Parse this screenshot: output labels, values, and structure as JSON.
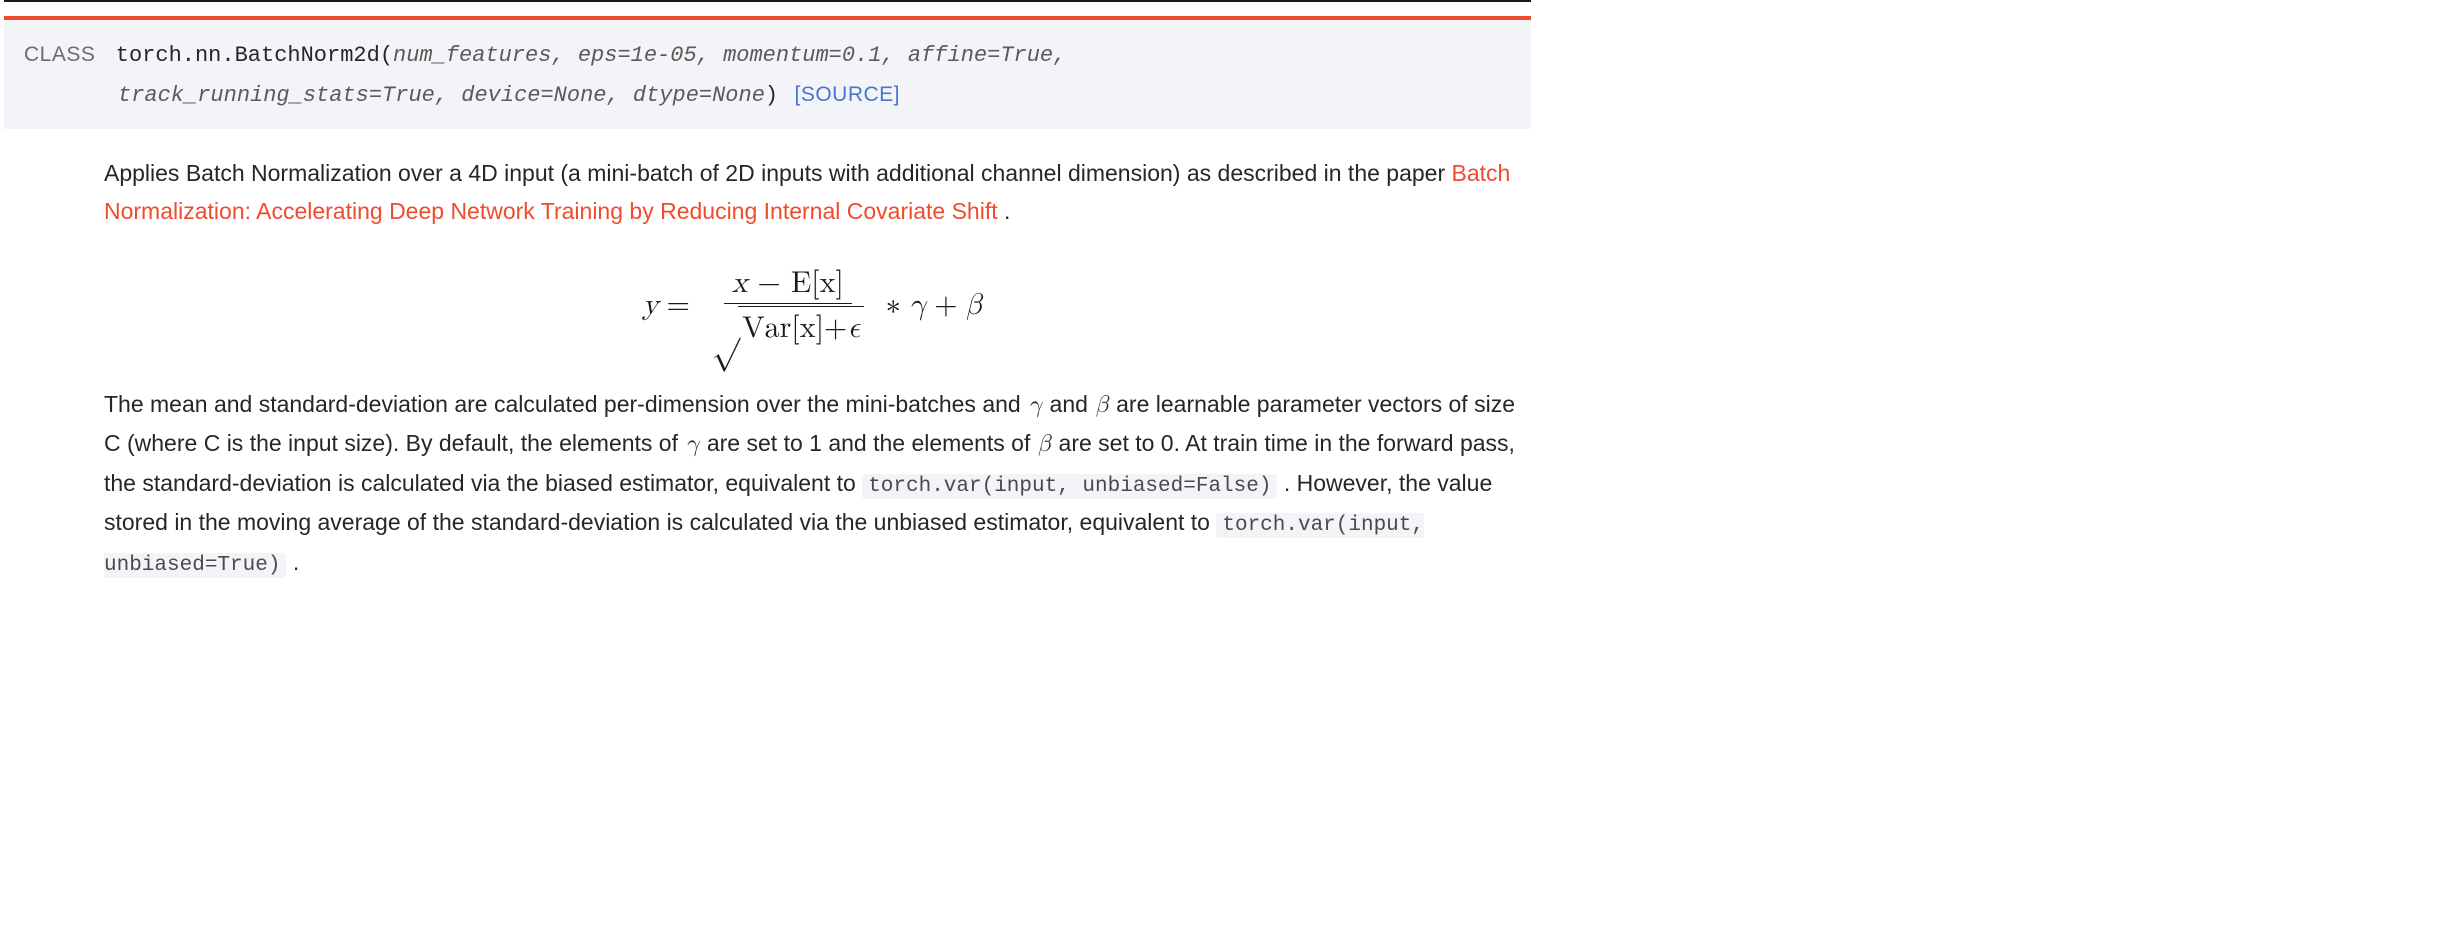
{
  "colors": {
    "accent": "#ee4c2c",
    "link": "#4974d1",
    "sig_bg": "#f3f4f7",
    "code_bg": "#f3f4f7",
    "text": "#262626",
    "param_text": "#5a5a5a",
    "top_rule": "#1a1a1a"
  },
  "signature": {
    "kind": "CLASS",
    "qualified_name": "torch.nn.BatchNorm2d",
    "params_line1": "num_features, eps=1e-05, momentum=0.1, affine=True,",
    "params_line2": "track_running_stats=True, device=None, dtype=None",
    "source_label": "[SOURCE]"
  },
  "intro": {
    "text_before_link": "Applies Batch Normalization over a 4D input (a mini-batch of 2D inputs with additional channel dimension) as described in the paper ",
    "paper_link_text": "Batch Normalization: Accelerating Deep Network Training by Reducing Internal Covariate Shift",
    "text_after_link": " ."
  },
  "formula": {
    "lhs": "y",
    "equals": "=",
    "numerator_x": "x",
    "numerator_minus": " − ",
    "numerator_E": "E",
    "numerator_bracket_x": "[x]",
    "denominator_Var": "Var",
    "denominator_bracket_x": "[x]",
    "denominator_plus": " + ",
    "denominator_eps": "ϵ",
    "times": "∗",
    "gamma": "γ",
    "plus": "+",
    "beta": "β"
  },
  "explanation": {
    "seg1": "The mean and standard-deviation are calculated per-dimension over the mini-batches and ",
    "gamma": "γ",
    "seg2": " and ",
    "beta": "β",
    "seg3": " are learnable parameter vectors of size C (where C is the input size). By default, the elements of ",
    "seg4": " are set to 1 and the elements of ",
    "seg5": " are set to 0. At train time in the forward pass, the standard-deviation is calculated via the biased estimator, equivalent to ",
    "code1": "torch.var(input, unbiased=False)",
    "seg6": " . However, the value stored in the moving average of the standard-deviation is calculated via the unbiased estimator, equivalent to ",
    "code2": "torch.var(input, unbiased=True)",
    "seg7": " ."
  }
}
